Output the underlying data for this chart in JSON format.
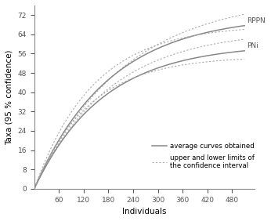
{
  "xlabel": "Individuals",
  "ylabel": "Taxa (95 % confidence)",
  "x_max": 510,
  "x_ticks": [
    60,
    120,
    180,
    240,
    300,
    360,
    420,
    480
  ],
  "y_ticks": [
    0,
    8,
    16,
    24,
    32,
    40,
    48,
    56,
    64,
    72
  ],
  "y_max": 76,
  "rppn_avg_params": [
    72.0,
    0.0055
  ],
  "rppn_upper_params": [
    80.0,
    0.0046
  ],
  "rppn_lower_params": [
    68.0,
    0.007
  ],
  "pni_avg_params": [
    60.0,
    0.006
  ],
  "pni_upper_params": [
    66.0,
    0.0055
  ],
  "pni_lower_params": [
    55.0,
    0.0075
  ],
  "line_color": "#888888",
  "dashed_color": "#aaaaaa",
  "rppn_label": "RPPN",
  "pni_label": "PNi",
  "legend_avg": "average curves obtained",
  "legend_ci": "upper and lower limits of\nthe confidence interval",
  "font_size": 6.5,
  "label_font_size": 7.5,
  "fig_width": 3.46,
  "fig_height": 2.82
}
